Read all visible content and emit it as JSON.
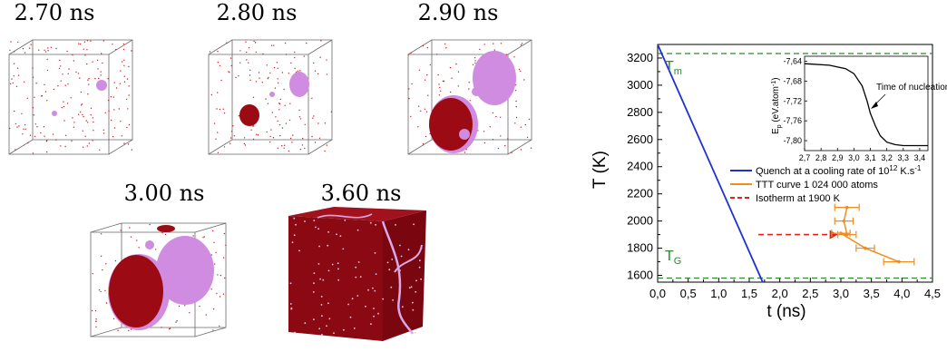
{
  "snapshots": [
    {
      "label": "2.70 ns"
    },
    {
      "label": "2.80 ns"
    },
    {
      "label": "2.90 ns"
    },
    {
      "label": "3.00 ns"
    },
    {
      "label": "3.60 ns"
    }
  ],
  "chart_data": [
    {
      "type": "line",
      "xlabel": "t (ns)",
      "ylabel": "T (K)",
      "xlim": [
        0,
        4.5
      ],
      "ylim": [
        1550,
        3300
      ],
      "x_ticks": [
        "0,0",
        "0,5",
        "1,0",
        "1,5",
        "2,0",
        "2,5",
        "3,0",
        "3,5",
        "4,0",
        "4,5"
      ],
      "y_ticks": [
        "1600",
        "1800",
        "2000",
        "2200",
        "2400",
        "2600",
        "2800",
        "3000",
        "3200"
      ],
      "tick_values_x": [
        0,
        0.5,
        1,
        1.5,
        2,
        2.5,
        3,
        3.5,
        4,
        4.5
      ],
      "tick_values_y": [
        1600,
        1800,
        2000,
        2200,
        2400,
        2600,
        2800,
        3000,
        3200
      ],
      "reference_lines": [
        {
          "label": "T",
          "sub": "m",
          "y": 3300,
          "color": "#2a8a2a"
        },
        {
          "label": "T",
          "sub": "G",
          "y": 1580,
          "color": "#2a8a2a"
        }
      ],
      "series": [
        {
          "name": "Quench at a cooling rate of 10",
          "name_sup": "12",
          "name_suffix": " K.s",
          "name_suffix_sup": "-1",
          "color": "#1f2fd8",
          "x": [
            0,
            1.72
          ],
          "y": [
            3300,
            1550
          ]
        },
        {
          "name": "TTT curve 1 024 000 atoms",
          "color": "#f28c1c",
          "x": [
            3.1,
            3.05,
            3.1,
            3.0,
            3.4,
            3.95
          ],
          "y": [
            2100,
            2000,
            1900,
            1910,
            1800,
            1700
          ],
          "xerr": [
            0.2,
            0.15,
            0.15,
            0.15,
            0.15,
            0.25
          ]
        },
        {
          "name": "Isotherm at 1900 K",
          "color": "#e8201c",
          "x": [
            1.65,
            2.95
          ],
          "y": [
            1900,
            1900
          ]
        }
      ],
      "legend": "center-right"
    },
    {
      "type": "line",
      "title": "",
      "ylabel": "E",
      "ylabel_sub": "p",
      "ylabel_suffix": " (eV.atom",
      "ylabel_sup": "-1",
      "ylabel_close": ")",
      "xlim": [
        2.7,
        3.45
      ],
      "ylim": [
        -7.82,
        -7.63
      ],
      "x_ticks": [
        "2,7",
        "2,8",
        "2,9",
        "3,0",
        "3,1",
        "3,2",
        "3,3",
        "3,4"
      ],
      "tick_values_x": [
        2.7,
        2.8,
        2.9,
        3.0,
        3.1,
        3.2,
        3.3,
        3.4
      ],
      "y_ticks": [
        "-7,64",
        "-7,68",
        "-7,72",
        "-7,76",
        "-7,80"
      ],
      "tick_values_y": [
        -7.64,
        -7.68,
        -7.72,
        -7.76,
        -7.8
      ],
      "annotation": "Time of nucleation",
      "series": [
        {
          "name": "",
          "color": "#000000",
          "x": [
            2.7,
            2.85,
            2.95,
            3.0,
            3.05,
            3.08,
            3.1,
            3.13,
            3.16,
            3.2,
            3.25,
            3.3,
            3.35,
            3.45
          ],
          "y": [
            -7.645,
            -7.648,
            -7.655,
            -7.665,
            -7.69,
            -7.72,
            -7.745,
            -7.77,
            -7.79,
            -7.803,
            -7.808,
            -7.81,
            -7.81,
            -7.81
          ]
        }
      ]
    }
  ]
}
